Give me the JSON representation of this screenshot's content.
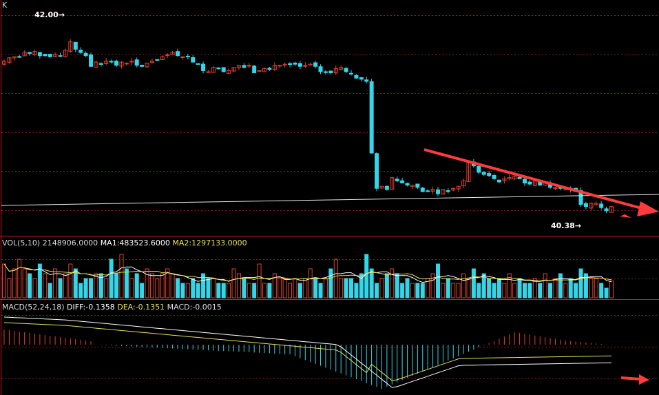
{
  "colors": {
    "background": "#000000",
    "up": "#e8412c",
    "down": "#33d6e8",
    "grid": "#8a1f1f",
    "panel_border": "#c81e1e",
    "text": "#dcdcdc",
    "ma1": "#ffffff",
    "ma2": "#e8e15a",
    "trend": "#ff3b3b",
    "support": "#e6e6e6"
  },
  "header": {
    "title": "K"
  },
  "price_panel": {
    "high_label": "42.00",
    "low_label": "40.38",
    "ylim": [
      40.2,
      42.3
    ],
    "candles_note_hidden": ""
  },
  "volume_panel": {
    "title": "VOL(5,10)",
    "value": "2148906.0000",
    "ma1_label": "MA1:483523.6000",
    "ma2_label": "MA2:1297133.0000"
  },
  "macd_panel": {
    "title": "MACD(52,24,18)",
    "diff_label": "DIFF:-0.1358",
    "dea_label": "DEA:-0.1351",
    "macd_label": "MACD:-0.0015"
  },
  "chart_data": [
    {
      "type": "candlestick",
      "title": "",
      "count": 120,
      "series": [
        {
          "name": "",
          "values": [
            41.82,
            41.85,
            41.86,
            41.86,
            41.9,
            41.89,
            41.91,
            41.87,
            41.87,
            41.86,
            41.88,
            41.87,
            41.92,
            42.0,
            41.93,
            41.9,
            41.87,
            41.77,
            41.81,
            41.79,
            41.82,
            41.81,
            41.78,
            41.81,
            41.8,
            41.82,
            41.78,
            41.77,
            41.8,
            41.82,
            41.83,
            41.86,
            41.88,
            41.9,
            41.87,
            41.86,
            41.86,
            41.81,
            41.79,
            41.73,
            41.72,
            41.76,
            41.75,
            41.72,
            41.73,
            41.76,
            41.78,
            41.76,
            41.78,
            41.71,
            41.73,
            41.75,
            41.74,
            41.78,
            41.78,
            41.79,
            41.79,
            41.79,
            41.77,
            41.78,
            41.79,
            41.77,
            41.72,
            41.72,
            41.71,
            41.75,
            41.76,
            41.72,
            41.7,
            41.66,
            41.65,
            41.63,
            40.96,
            40.63,
            40.65,
            40.62,
            40.73,
            40.7,
            40.68,
            40.66,
            40.66,
            40.64,
            40.6,
            40.6,
            40.62,
            40.58,
            40.62,
            40.6,
            40.63,
            40.65,
            40.7,
            40.87,
            40.84,
            40.78,
            40.76,
            40.75,
            40.72,
            40.69,
            40.72,
            40.73,
            40.74,
            40.72,
            40.68,
            40.67,
            40.7,
            40.66,
            40.68,
            40.64,
            40.64,
            40.63,
            40.63,
            40.62,
            40.6,
            40.48,
            40.46,
            40.49,
            40.49,
            40.45,
            40.42,
            40.46
          ]
        }
      ],
      "annotations": [
        "42.00",
        "40.38"
      ]
    },
    {
      "type": "bar",
      "title": "VOL(5,10)",
      "series": [
        {
          "name": "VOL",
          "values": [
            0.7,
            0.4,
            0.6,
            0.8,
            0.6,
            0.5,
            0.4,
            0.7,
            0.5,
            0.3,
            0.6,
            0.4,
            0.5,
            0.7,
            0.6,
            0.3,
            0.4,
            0.4,
            0.5,
            0.5,
            0.4,
            0.8,
            0.5,
            0.9,
            0.6,
            0.4,
            0.5,
            0.3,
            0.6,
            0.5,
            0.4,
            0.5,
            0.6,
            0.5,
            0.4,
            0.3,
            0.3,
            0.4,
            0.3,
            0.5,
            0.4,
            0.4,
            0.3,
            0.3,
            0.3,
            0.6,
            0.5,
            0.4,
            0.3,
            0.3,
            0.7,
            0.3,
            0.3,
            0.5,
            0.4,
            0.4,
            0.3,
            0.4,
            0.3,
            0.4,
            0.6,
            0.4,
            0.3,
            0.4,
            0.6,
            0.8,
            0.4,
            0.4,
            0.4,
            0.3,
            0.5,
            0.9,
            0.6,
            0.3,
            0.4,
            0.5,
            0.6,
            0.5,
            0.3,
            0.4,
            0.3,
            0.3,
            0.3,
            0.4,
            0.5,
            0.7,
            0.3,
            0.4,
            0.3,
            0.3,
            0.5,
            0.4,
            0.6,
            0.3,
            0.5,
            0.4,
            0.3,
            0.4,
            0.3,
            0.5,
            0.3,
            0.4,
            0.3,
            0.3,
            0.4,
            0.3,
            0.5,
            0.3,
            0.4,
            0.5,
            0.3,
            0.4,
            0.3,
            0.6,
            0.5,
            0.4,
            0.4,
            0.3,
            0.2,
            0.35
          ]
        },
        {
          "name": "MA1",
          "values": []
        },
        {
          "name": "MA2",
          "values": []
        }
      ]
    },
    {
      "type": "bar",
      "title": "MACD(52,24,18)",
      "series": [
        {
          "name": "DIFF",
          "values": []
        },
        {
          "name": "DEA",
          "values": []
        },
        {
          "name": "MACD",
          "values": []
        }
      ]
    }
  ]
}
